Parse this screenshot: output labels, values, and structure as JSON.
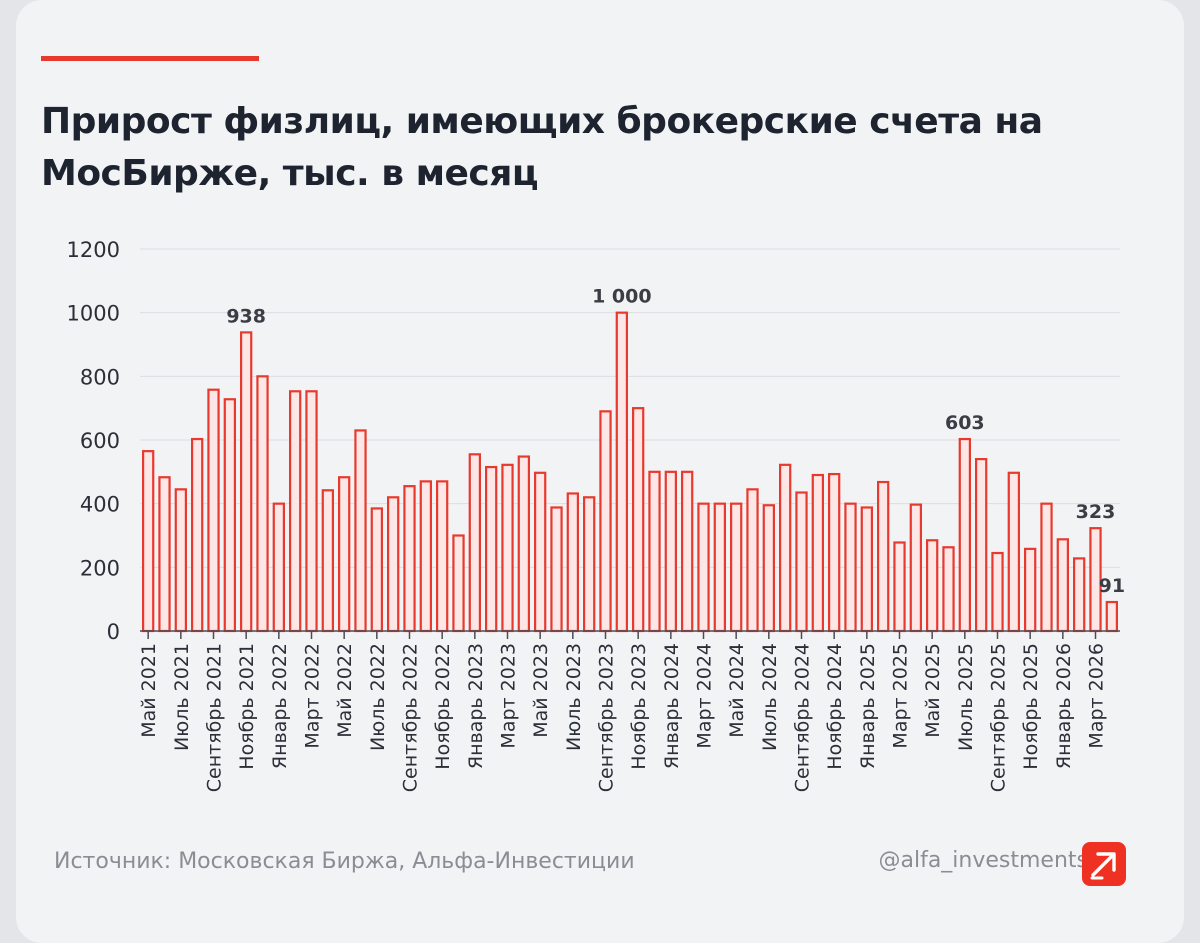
{
  "title": "Прирост физлиц, имеющих брокерские счета на МосБирже, тыс. в месяц",
  "footer": {
    "source": "Источник: Московская Биржа, Альфа-Инвестиции",
    "handle": "@alfa_investments"
  },
  "colors": {
    "accent": "#e8392f",
    "bar_fill": "#fde7e6",
    "bar_stroke": "#e8392f",
    "title": "#1e2330",
    "muted": "#8a8d94",
    "grid": "#dcdde1"
  },
  "icons": {
    "logo": "arrow-up-right-icon"
  },
  "chart_data": {
    "type": "bar",
    "title": "Прирост физлиц, имеющих брокерские счета на МосБирже, тыс. в месяц",
    "xlabel": "",
    "ylabel": "",
    "ylim": [
      0,
      1200
    ],
    "yticks": [
      0,
      200,
      400,
      600,
      800,
      1000,
      1200
    ],
    "grid": true,
    "legend": "none",
    "tick_labels": [
      {
        "index": 0,
        "label": "Май 2021"
      },
      {
        "index": 2,
        "label": "Июль 2021"
      },
      {
        "index": 4,
        "label": "Сентябрь 2021"
      },
      {
        "index": 6,
        "label": "Ноябрь 2021"
      },
      {
        "index": 8,
        "label": "Январь 2022"
      },
      {
        "index": 10,
        "label": "Март 2022"
      },
      {
        "index": 12,
        "label": "Май 2022"
      },
      {
        "index": 14,
        "label": "Июль 2022"
      },
      {
        "index": 16,
        "label": "Сентябрь 2022"
      },
      {
        "index": 18,
        "label": "Ноябрь 2022"
      },
      {
        "index": 20,
        "label": "Январь 2023"
      },
      {
        "index": 22,
        "label": "Март 2023"
      },
      {
        "index": 24,
        "label": "Май 2023"
      },
      {
        "index": 26,
        "label": "Июль 2023"
      },
      {
        "index": 28,
        "label": "Сентябрь 2023"
      },
      {
        "index": 30,
        "label": "Ноябрь 2023"
      },
      {
        "index": 32,
        "label": "Январь 2024"
      },
      {
        "index": 34,
        "label": "Март 2024"
      },
      {
        "index": 36,
        "label": "Май 2024"
      },
      {
        "index": 38,
        "label": "Июль 2024"
      },
      {
        "index": 40,
        "label": "Сентябрь 2024"
      },
      {
        "index": 42,
        "label": "Ноябрь 2024"
      },
      {
        "index": 44,
        "label": "Январь 2025"
      },
      {
        "index": 46,
        "label": "Март 2025"
      },
      {
        "index": 48,
        "label": "Май 2025"
      },
      {
        "index": 50,
        "label": "Июль 2025"
      },
      {
        "index": 52,
        "label": "Сентябрь 2025"
      },
      {
        "index": 54,
        "label": "Ноябрь 2025"
      },
      {
        "index": 56,
        "label": "Январь 2026"
      },
      {
        "index": 58,
        "label": "Март 2026"
      }
    ],
    "values": [
      565,
      483,
      445,
      603,
      758,
      728,
      938,
      800,
      400,
      753,
      753,
      442,
      483,
      630,
      385,
      420,
      455,
      470,
      470,
      300,
      555,
      515,
      522,
      548,
      497,
      388,
      432,
      420,
      690,
      1000,
      700,
      500,
      500,
      500,
      400,
      400,
      400,
      445,
      395,
      522,
      435,
      490,
      493,
      400,
      388,
      468,
      278,
      397,
      285,
      263,
      603,
      540,
      245,
      497,
      258,
      400,
      288,
      228,
      323,
      91
    ],
    "data_labels": [
      {
        "index": 6,
        "label": "938"
      },
      {
        "index": 29,
        "label": "1 000"
      },
      {
        "index": 50,
        "label": "603"
      },
      {
        "index": 58,
        "label": "323"
      },
      {
        "index": 59,
        "label": "91"
      }
    ]
  }
}
